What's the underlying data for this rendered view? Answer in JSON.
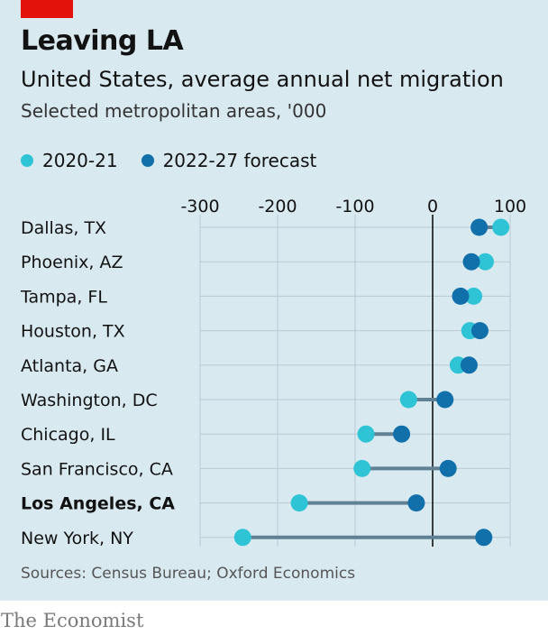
{
  "header": {
    "title": "Leaving LA",
    "subtitle": "United States, average annual net migration",
    "subsubtitle": "Selected metropolitan areas, '000"
  },
  "legend": {
    "a_label": "2020-21",
    "b_label": "2022-27 forecast"
  },
  "footer": {
    "source": "Sources: Census Bureau; Oxford Economics",
    "brand": "The Economist"
  },
  "colors": {
    "series_a": "#2ec4d6",
    "series_b": "#1170aa",
    "connector": "#5f8193",
    "grid": "#b7c9d2",
    "zero": "#121212",
    "accent": "#e3120b"
  },
  "chart_data": {
    "type": "dot",
    "title": "Leaving LA",
    "subtitle": "United States, average annual net migration",
    "unit": "Selected metropolitan areas, '000",
    "xlim": [
      -300,
      100
    ],
    "ticks": [
      -300,
      -200,
      -100,
      0,
      100
    ],
    "tick_labels": [
      "-300",
      "-200",
      "-100",
      "0",
      "100"
    ],
    "grid": true,
    "legend_position": "top-left",
    "highlight": "Los Angeles, CA",
    "categories": [
      "Dallas, TX",
      "Phoenix, AZ",
      "Tampa, FL",
      "Houston, TX",
      "Atlanta, GA",
      "Washington, DC",
      "Chicago, IL",
      "San Francisco, CA",
      "Los Angeles, CA",
      "New York, NY"
    ],
    "series": [
      {
        "name": "2020-21",
        "values": [
          88,
          68,
          53,
          48,
          33,
          -31,
          -86,
          -91,
          -172,
          -245
        ]
      },
      {
        "name": "2022-27 forecast",
        "values": [
          60,
          50,
          36,
          61,
          47,
          16,
          -40,
          20,
          -21,
          66
        ]
      }
    ]
  }
}
